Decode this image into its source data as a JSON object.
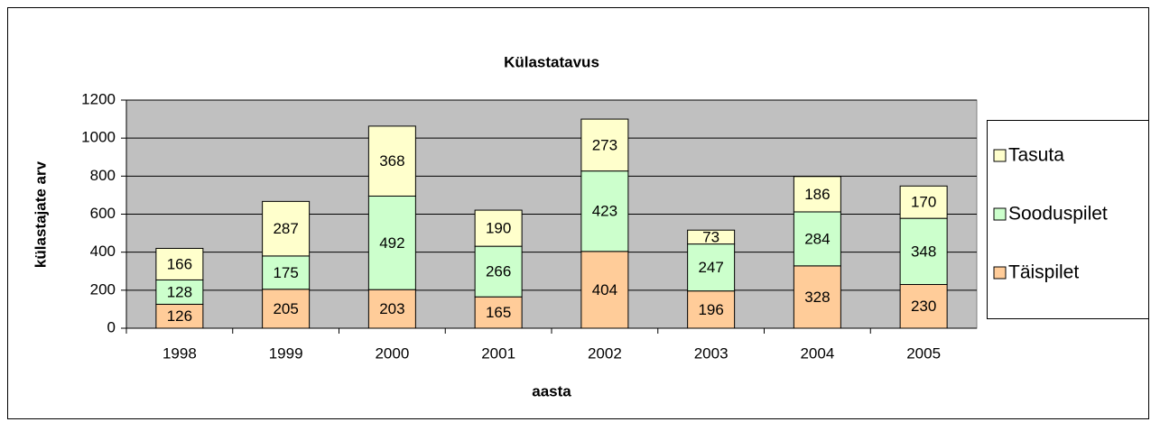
{
  "chart_data": {
    "type": "bar",
    "stacked": true,
    "title": "Külastatavus",
    "x_label": "aasta",
    "y_label": "külastajate arv",
    "categories": [
      "1998",
      "1999",
      "2000",
      "2001",
      "2002",
      "2003",
      "2004",
      "2005"
    ],
    "series": [
      {
        "name": "Täispilet",
        "color": "#ffcc99",
        "values": [
          126,
          205,
          203,
          165,
          404,
          196,
          328,
          230
        ]
      },
      {
        "name": "Sooduspilet",
        "color": "#ccffcc",
        "values": [
          128,
          175,
          492,
          266,
          423,
          247,
          284,
          348
        ]
      },
      {
        "name": "Tasuta",
        "color": "#ffffcc",
        "values": [
          166,
          287,
          368,
          190,
          273,
          73,
          186,
          170
        ]
      }
    ],
    "ylim": [
      0,
      1200
    ],
    "yticks": [
      0,
      200,
      400,
      600,
      800,
      1000,
      1200
    ],
    "grid": true,
    "legend": "right"
  }
}
